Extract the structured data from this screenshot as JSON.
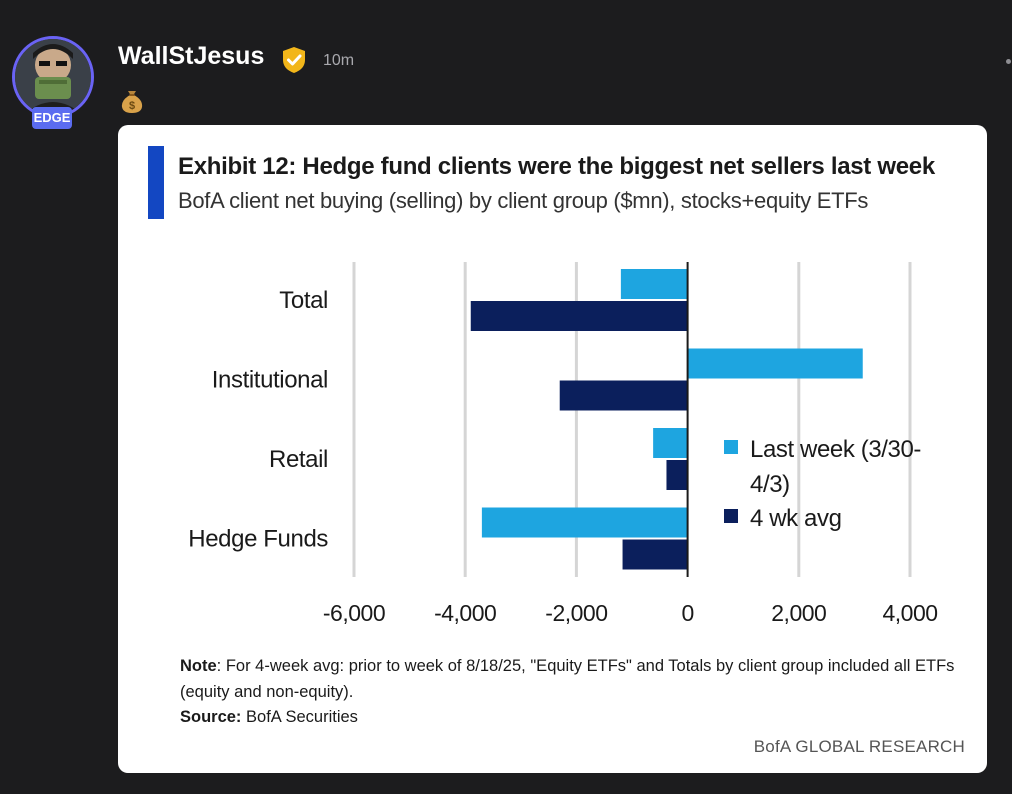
{
  "post": {
    "username": "WallStJesus",
    "timestamp": "10m",
    "badge": "EDGE",
    "emoji": "money-bag-icon"
  },
  "card": {
    "title": "Exhibit 12: Hedge fund clients were the biggest net sellers last week",
    "subtitle": "BofA client net buying (selling) by client group ($mn), stocks+equity ETFs",
    "note_label": "Note",
    "note_text": ": For 4-week avg: prior to week of 8/18/25, \"Equity ETFs\" and Totals by client group included all ETFs (equity and non-equity).",
    "source_label": "Source:",
    "source_text": " BofA Securities",
    "footer": "BofA GLOBAL RESEARCH"
  },
  "colors": {
    "last_week": "#1ea5e0",
    "four_wk": "#0b1f5c",
    "accent": "#1347c2",
    "badge": "#5b6cf0"
  },
  "chart_data": {
    "type": "bar",
    "orientation": "horizontal",
    "title": "Exhibit 12: Hedge fund clients were the biggest net sellers last week",
    "subtitle": "BofA client net buying (selling) by client group ($mn), stocks+equity ETFs",
    "categories": [
      "Total",
      "Institutional",
      "Retail",
      "Hedge Funds"
    ],
    "series": [
      {
        "name": "Last week (3/30-4/3)",
        "values": [
          -1200,
          3150,
          -620,
          -3700
        ]
      },
      {
        "name": "4 wk avg",
        "values": [
          -3900,
          -2300,
          -380,
          -1170
        ]
      }
    ],
    "xlim": [
      -6000,
      4000
    ],
    "ticks": [
      -6000,
      -4000,
      -2000,
      0,
      2000,
      4000
    ],
    "tick_labels": [
      "-6,000",
      "-4,000",
      "-2,000",
      "0",
      "2,000",
      "4,000"
    ],
    "legend": [
      "Last week (3/30-",
      "4/3)",
      "4 wk avg"
    ],
    "grid": true
  }
}
